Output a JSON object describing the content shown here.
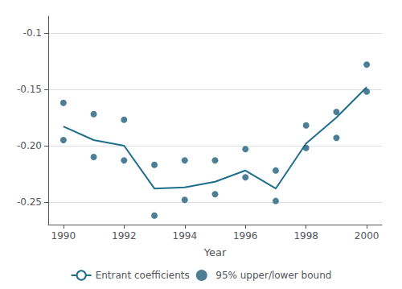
{
  "chart_data": {
    "type": "line",
    "x": [
      1990,
      1991,
      1992,
      1993,
      1994,
      1995,
      1996,
      1997,
      1998,
      1999,
      2000
    ],
    "series": [
      {
        "name": "Entrant coefficients",
        "type": "line",
        "color": "#1f6e8c",
        "values": [
          -0.183,
          -0.195,
          -0.2,
          -0.238,
          -0.237,
          -0.232,
          -0.222,
          -0.238,
          -0.198,
          -0.175,
          -0.148
        ]
      },
      {
        "name": "95% upper/lower bound",
        "type": "scatter",
        "color": "#1f5f7a",
        "values": [
          -0.162,
          -0.172,
          -0.177,
          -0.217,
          -0.213,
          -0.213,
          -0.203,
          -0.222,
          -0.182,
          -0.17,
          -0.128
        ]
      },
      {
        "name": "95% upper/lower bound",
        "type": "scatter",
        "color": "#1f5f7a",
        "values": [
          -0.195,
          -0.21,
          -0.213,
          -0.262,
          -0.248,
          -0.243,
          -0.228,
          -0.249,
          -0.202,
          -0.193,
          -0.152
        ]
      }
    ],
    "xlabel": "Year",
    "xlim": [
      1989.5,
      2000.5
    ],
    "xticks": [
      1990,
      1992,
      1994,
      1996,
      1998,
      2000
    ],
    "ylim": [
      -0.27,
      -0.085
    ],
    "yticks": [
      -0.25,
      {
        "value": -0.2,
        "label": "-0.20"
      },
      -0.15,
      -0.1
    ],
    "grid": true,
    "legend": "bottom"
  }
}
